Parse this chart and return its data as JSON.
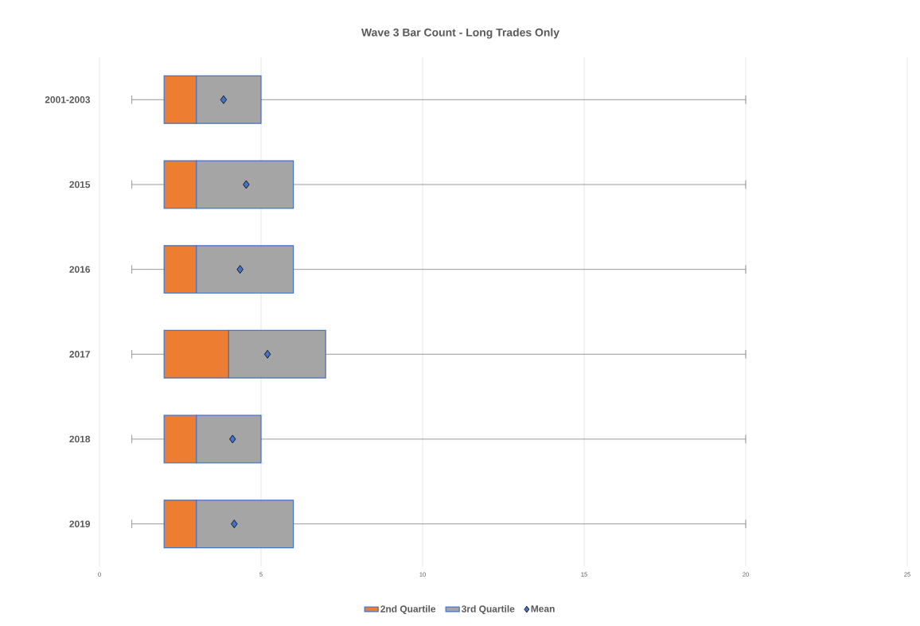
{
  "chart_data": {
    "type": "bar",
    "orientation": "horizontal",
    "title": "Wave 3 Bar Count - Long Trades Only",
    "categories": [
      "2001-2003",
      "2015",
      "2016",
      "2017",
      "2018",
      "2019"
    ],
    "series": [
      {
        "name": "2nd Quartile",
        "color": "#ed7d31",
        "base": [
          2,
          2,
          2,
          2,
          2,
          2
        ],
        "values": [
          1,
          1,
          1,
          2,
          1,
          1
        ]
      },
      {
        "name": "3rd Quartile",
        "color": "#a5a5a5",
        "base": [
          3,
          3,
          3,
          4,
          3,
          3
        ],
        "values": [
          2,
          3,
          3,
          3,
          2,
          3
        ],
        "errors": [
          [
            1,
            20
          ],
          [
            1,
            20
          ],
          [
            1,
            20
          ],
          [
            1,
            20
          ],
          [
            1,
            20
          ],
          [
            1,
            20
          ]
        ]
      },
      {
        "name": "Mean",
        "color": "#4472c4",
        "type": "scatter",
        "marker": "diamond",
        "values": [
          3.84,
          4.54,
          4.35,
          5.2,
          4.12,
          4.17
        ]
      }
    ],
    "xlim": [
      0,
      25
    ],
    "xticks": [
      0,
      5,
      10,
      15,
      20,
      25
    ],
    "grid": "x",
    "legend": "bottom"
  }
}
